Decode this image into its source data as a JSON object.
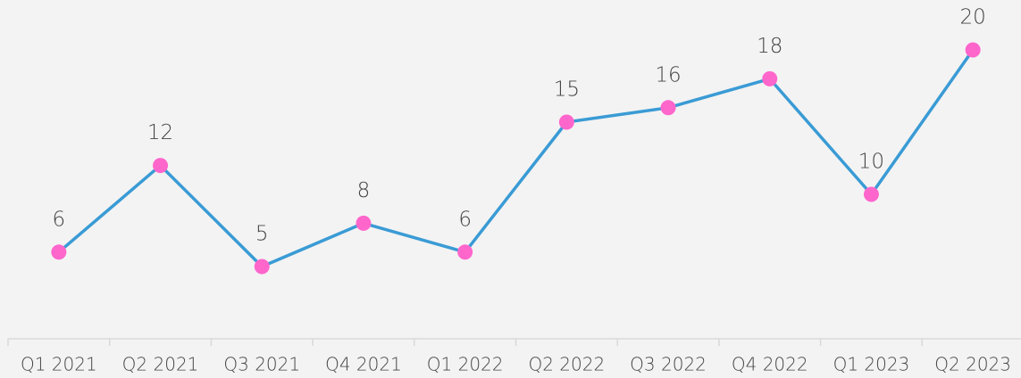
{
  "chart_data": {
    "type": "line",
    "categories": [
      "Q1 2021",
      "Q2 2021",
      "Q3 2021",
      "Q4 2021",
      "Q1 2022",
      "Q2 2022",
      "Q3 2022",
      "Q4 2022",
      "Q1 2023",
      "Q2 2023"
    ],
    "values": [
      6,
      12,
      5,
      8,
      6,
      15,
      16,
      18,
      10,
      20
    ],
    "color": "#3a9bd5",
    "marker_color": "#ff66cc"
  }
}
